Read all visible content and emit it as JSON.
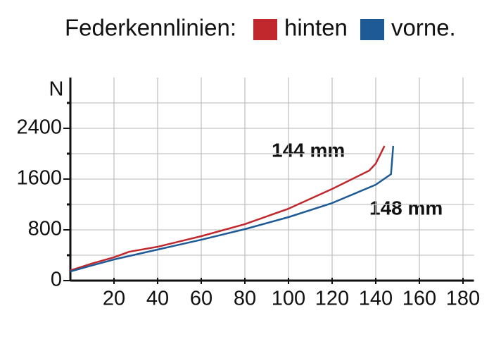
{
  "chart_data": {
    "type": "line",
    "title": "Federkennlinien:",
    "y_label": "N",
    "annotations": [
      "144 mm",
      "148 mm"
    ],
    "xlim": [
      0,
      185
    ],
    "xticks": [
      20,
      40,
      60,
      80,
      100,
      120,
      140,
      160,
      180
    ],
    "ylim": [
      0,
      3200
    ],
    "yticks": [
      0,
      800,
      1600,
      2400
    ],
    "yminor_ticks": [
      400,
      1200,
      2000,
      2800
    ],
    "grid": true,
    "series": [
      {
        "name": "hinten",
        "color": "#c0282d",
        "x": [
          0,
          10,
          20,
          27,
          40,
          60,
          80,
          100,
          120,
          137,
          140,
          144
        ],
        "values": [
          160,
          270,
          367,
          455,
          533,
          700,
          890,
          1133,
          1444,
          1733,
          1844,
          2122
        ]
      },
      {
        "name": "vorne.",
        "color": "#1d5a96",
        "x": [
          0,
          10,
          20,
          40,
          60,
          80,
          100,
          120,
          140,
          147,
          148
        ],
        "values": [
          144,
          240,
          333,
          489,
          644,
          811,
          1000,
          1222,
          1511,
          1678,
          2122
        ]
      }
    ]
  }
}
